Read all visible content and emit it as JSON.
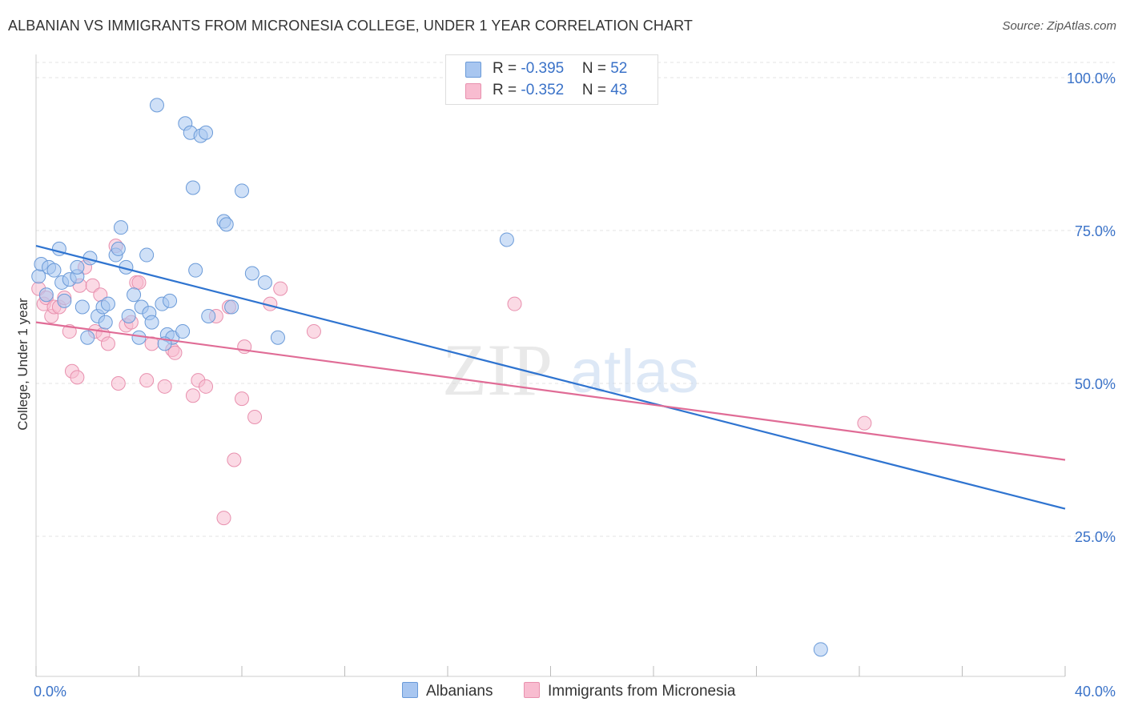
{
  "title": "ALBANIAN VS IMMIGRANTS FROM MICRONESIA COLLEGE, UNDER 1 YEAR CORRELATION CHART",
  "source": "Source: ZipAtlas.com",
  "watermark": {
    "zip": "ZIP",
    "atlas": "atlas"
  },
  "legend": {
    "albanians": {
      "r_label": "R = ",
      "r_value": "-0.395",
      "n_label": "N = ",
      "n_value": "52",
      "color": "#a8c6f0",
      "border": "#6a9ad8"
    },
    "micronesia": {
      "r_label": "R = ",
      "r_value": "-0.352",
      "n_label": "N = ",
      "n_value": "43",
      "color": "#f8bcd0",
      "border": "#e890ae"
    }
  },
  "bottom_legend": {
    "albanians": "Albanians",
    "micronesia": "Immigrants from Micronesia"
  },
  "chart_data": {
    "type": "scatter",
    "xlabel": "",
    "ylabel": "College, Under 1 year",
    "xlim": [
      0,
      40
    ],
    "ylim": [
      0,
      102
    ],
    "x_tick_labels": [
      {
        "value": 0,
        "label": "0.0%"
      },
      {
        "value": 40,
        "label": "40.0%"
      }
    ],
    "y_tick_labels": [
      {
        "value": 100,
        "label": "100.0%"
      },
      {
        "value": 75,
        "label": "75.0%"
      },
      {
        "value": 50,
        "label": "50.0%"
      },
      {
        "value": 25,
        "label": "25.0%"
      }
    ],
    "x_minor_ticks": [
      0,
      4,
      8,
      12,
      16,
      20,
      24,
      28,
      32,
      36,
      40
    ],
    "series": [
      {
        "name": "Albanians",
        "color": "#a8c6f0",
        "stroke": "#6a9ad8",
        "trend_color": "#2f74d0",
        "trend": [
          [
            0,
            72.5
          ],
          [
            40,
            29.5
          ]
        ],
        "points": [
          [
            0.1,
            67.5
          ],
          [
            0.2,
            69.5
          ],
          [
            0.4,
            64.5
          ],
          [
            0.5,
            69
          ],
          [
            0.7,
            68.5
          ],
          [
            0.9,
            72
          ],
          [
            1.0,
            66.5
          ],
          [
            1.1,
            63.5
          ],
          [
            1.3,
            67
          ],
          [
            1.6,
            67.5
          ],
          [
            1.6,
            69
          ],
          [
            2.1,
            70.5
          ],
          [
            1.8,
            62.5
          ],
          [
            2.0,
            57.5
          ],
          [
            2.4,
            61
          ],
          [
            2.6,
            62.5
          ],
          [
            2.7,
            60
          ],
          [
            2.8,
            63
          ],
          [
            3.1,
            71
          ],
          [
            3.2,
            72
          ],
          [
            3.5,
            69
          ],
          [
            3.6,
            61
          ],
          [
            3.8,
            64.5
          ],
          [
            4.0,
            57.5
          ],
          [
            4.1,
            62.5
          ],
          [
            4.3,
            71
          ],
          [
            4.4,
            61.5
          ],
          [
            4.5,
            60
          ],
          [
            4.7,
            95.5
          ],
          [
            4.9,
            63
          ],
          [
            5.1,
            58
          ],
          [
            5.2,
            63.5
          ],
          [
            5.3,
            57.5
          ],
          [
            5.7,
            58.5
          ],
          [
            5.8,
            92.5
          ],
          [
            6.0,
            91
          ],
          [
            6.2,
            68.5
          ],
          [
            6.4,
            90.5
          ],
          [
            6.6,
            91
          ],
          [
            6.7,
            61
          ],
          [
            6.1,
            82
          ],
          [
            7.3,
            76.5
          ],
          [
            7.4,
            76
          ],
          [
            7.6,
            62.5
          ],
          [
            8.0,
            81.5
          ],
          [
            8.4,
            68
          ],
          [
            8.9,
            66.5
          ],
          [
            9.4,
            57.5
          ],
          [
            3.3,
            75.5
          ],
          [
            18.3,
            73.5
          ],
          [
            30.5,
            6.5
          ],
          [
            5.0,
            56.5
          ]
        ]
      },
      {
        "name": "Immigrants from Micronesia",
        "color": "#f8bcd0",
        "stroke": "#e890ae",
        "trend_color": "#e06c96",
        "trend": [
          [
            0,
            60
          ],
          [
            40,
            37.5
          ]
        ],
        "points": [
          [
            0.1,
            65.5
          ],
          [
            0.3,
            63
          ],
          [
            0.4,
            64
          ],
          [
            0.6,
            61
          ],
          [
            0.7,
            62.5
          ],
          [
            0.9,
            62.5
          ],
          [
            1.1,
            64
          ],
          [
            1.3,
            58.5
          ],
          [
            1.4,
            52
          ],
          [
            1.6,
            51
          ],
          [
            1.7,
            66
          ],
          [
            1.9,
            69
          ],
          [
            2.2,
            66
          ],
          [
            2.3,
            58.5
          ],
          [
            2.5,
            64.5
          ],
          [
            2.6,
            58
          ],
          [
            2.8,
            56.5
          ],
          [
            3.1,
            72.5
          ],
          [
            3.2,
            50
          ],
          [
            3.5,
            59.5
          ],
          [
            3.7,
            60
          ],
          [
            3.9,
            66.5
          ],
          [
            4.0,
            66.5
          ],
          [
            4.3,
            50.5
          ],
          [
            4.5,
            56.5
          ],
          [
            5.0,
            49.5
          ],
          [
            5.3,
            55.5
          ],
          [
            5.4,
            55
          ],
          [
            6.1,
            48
          ],
          [
            6.3,
            50.5
          ],
          [
            6.6,
            49.5
          ],
          [
            7.0,
            61
          ],
          [
            7.3,
            28
          ],
          [
            7.5,
            62.5
          ],
          [
            7.7,
            37.5
          ],
          [
            8.0,
            47.5
          ],
          [
            8.1,
            56
          ],
          [
            8.5,
            44.5
          ],
          [
            9.1,
            63
          ],
          [
            9.5,
            65.5
          ],
          [
            10.8,
            58.5
          ],
          [
            18.6,
            63
          ],
          [
            32.2,
            43.5
          ]
        ]
      }
    ]
  }
}
